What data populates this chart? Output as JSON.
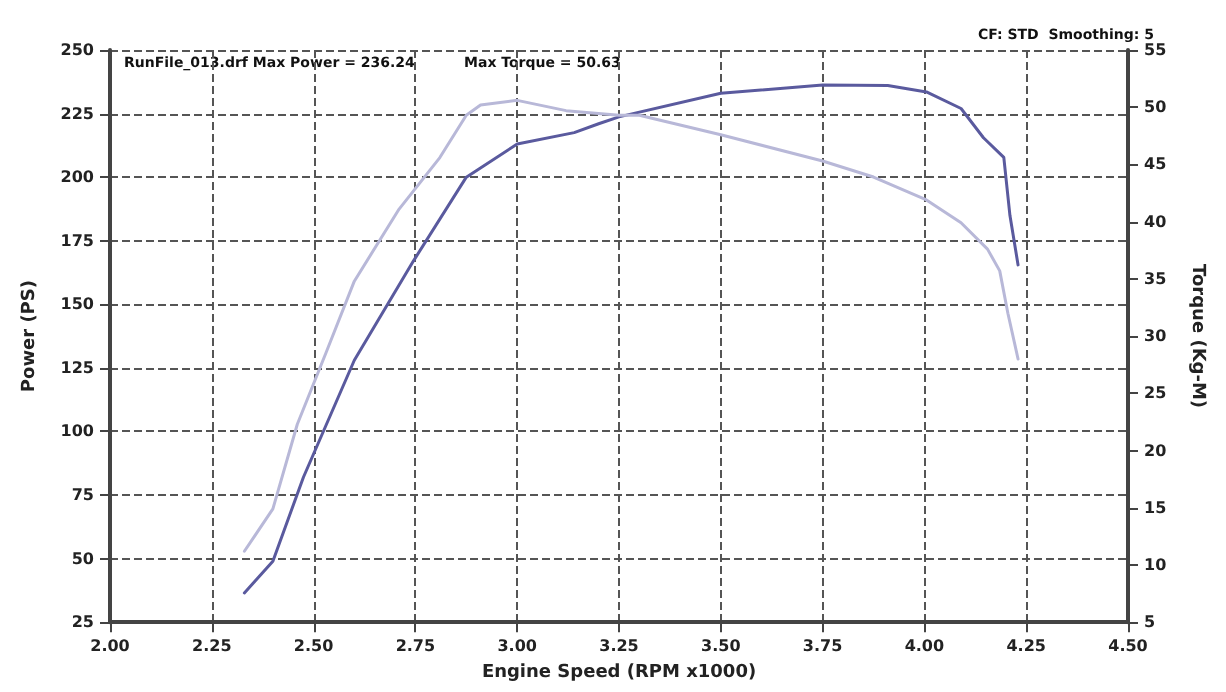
{
  "chart_data": {
    "type": "line",
    "xlabel": "Engine Speed (RPM x1000)",
    "ylabel": "Power (PS)",
    "y2label": "Torque (Kg-M)",
    "annotations": [
      "RunFile_013.drf Max Power = 236.24",
      "Max Torque = 50.63",
      "CF: STD  Smoothing: 5"
    ],
    "series": [
      {
        "color": "#5a5a9e",
        "x": [
          2.33,
          2.4,
          2.475,
          2.6,
          2.745,
          2.875,
          3.0,
          3.14,
          3.2,
          3.25,
          3.5,
          3.75,
          3.91,
          4.005,
          4.09,
          4.145,
          4.195,
          4.21,
          4.23
        ],
        "values": [
          36.5,
          49,
          82,
          128,
          167,
          200,
          213,
          217.5,
          221,
          223.7,
          233,
          236.2,
          236,
          233.5,
          227,
          215.5,
          207.8,
          185,
          165.5
        ]
      },
      {
        "color": "#b8b8d8",
        "axis": "y2",
        "x": [
          2.33,
          2.4,
          2.46,
          2.53,
          2.6,
          2.71,
          2.81,
          2.875,
          2.91,
          3.0,
          3.12,
          3.25,
          3.3,
          3.5,
          3.75,
          3.875,
          4.005,
          4.09,
          4.155,
          4.185,
          4.205,
          4.23
        ],
        "values": [
          11.2,
          14.9,
          22.3,
          28.5,
          34.8,
          41.1,
          45.6,
          49.3,
          50.2,
          50.6,
          49.7,
          49.3,
          49.3,
          47.6,
          45.3,
          43.9,
          41.9,
          39.9,
          37.6,
          35.7,
          32,
          28
        ]
      }
    ],
    "xlim": [
      2,
      4.5
    ],
    "xticks": [
      {
        "value": 2,
        "label": "2.00"
      },
      {
        "value": 2.25,
        "label": "2.25"
      },
      {
        "value": 2.5,
        "label": "2.50"
      },
      {
        "value": 2.75,
        "label": "2.75"
      },
      {
        "value": 3,
        "label": "3.00"
      },
      {
        "value": 3.25,
        "label": "3.25"
      },
      {
        "value": 3.5,
        "label": "3.50"
      },
      {
        "value": 3.75,
        "label": "3.75"
      },
      {
        "value": 4,
        "label": "4.00"
      },
      {
        "value": 4.25,
        "label": "4.25"
      },
      {
        "value": 4.5,
        "label": "4.50"
      }
    ],
    "ylim": [
      25,
      250
    ],
    "yticks": [
      25,
      50,
      75,
      100,
      125,
      150,
      175,
      200,
      225,
      250
    ],
    "y2lim": [
      5,
      55
    ],
    "y2ticks": [
      5,
      10,
      15,
      20,
      25,
      30,
      35,
      40,
      45,
      50,
      55
    ],
    "grid": true,
    "marker": "none",
    "line_style": "solid"
  }
}
